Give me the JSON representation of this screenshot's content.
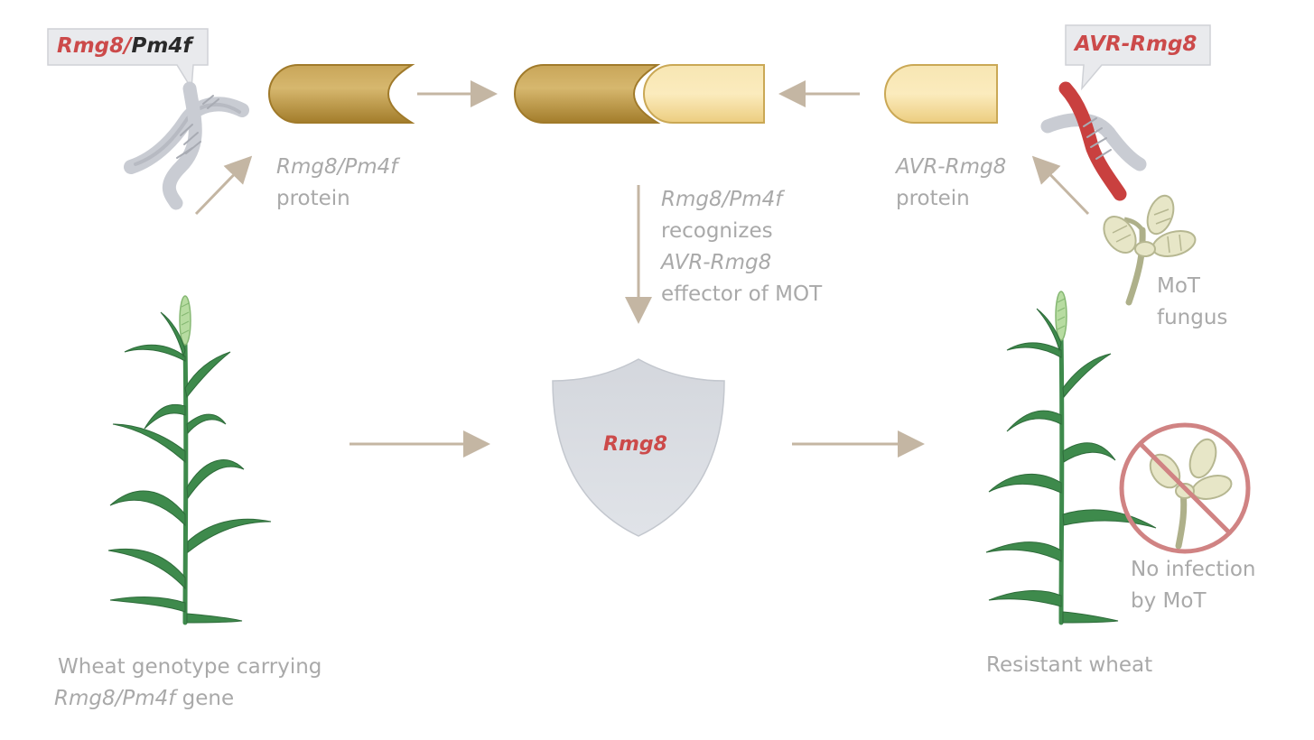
{
  "callouts": {
    "host_gene": {
      "part1": "Rmg8/",
      "part2": "Pm4f"
    },
    "pathogen_gene": "AVR-Rmg8"
  },
  "host_protein": {
    "name": "Rmg8/Pm4f",
    "word": "protein"
  },
  "pathogen_protein": {
    "name": "AVR-Rmg8",
    "word": "protein"
  },
  "recognition": {
    "line1": "Rmg8/Pm4f",
    "line2": "recognizes",
    "line3": "AVR-Rmg8",
    "line4": "effector of MOT"
  },
  "shield_label": "Rmg8",
  "fungus_label": {
    "line1": "MoT",
    "line2": "fungus"
  },
  "no_infection": {
    "line1": "No infection",
    "line2": "by MoT"
  },
  "wheat_left": {
    "line1": "Wheat genotype carrying",
    "gene": "Rmg8/Pm4f",
    "suffix": " gene"
  },
  "wheat_right": "Resistant wheat",
  "colors": {
    "host_protein": "#b8913a",
    "pathogen_protein": "#f3dc98",
    "arrow": "#c4b6a3",
    "dna_gray": "#c9ccd3",
    "dna_red": "#c9403f",
    "wheat_green": "#3e8a4c",
    "shield": "#d9dce1",
    "prohibit": "#d08383",
    "text_gray": "#a9a9a9",
    "accent_red": "#cc4a4a"
  }
}
